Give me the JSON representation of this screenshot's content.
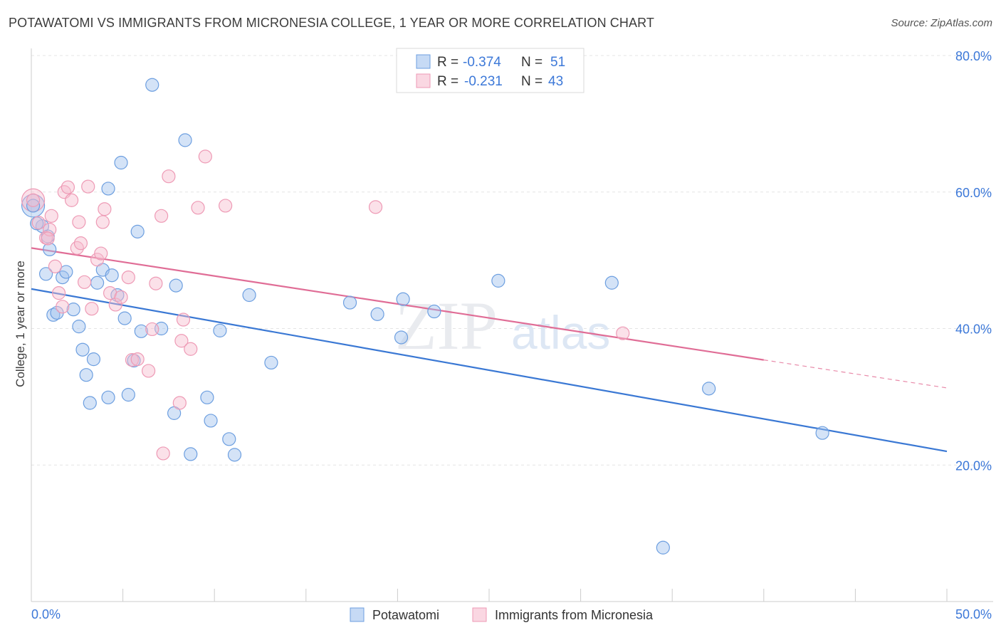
{
  "title": "POTAWATOMI VS IMMIGRANTS FROM MICRONESIA COLLEGE, 1 YEAR OR MORE CORRELATION CHART",
  "source": "Source: ZipAtlas.com",
  "watermark": {
    "zip": "ZIP",
    "atlas": "atlas"
  },
  "legend_box": {
    "rows": [
      {
        "r_label": "R =",
        "r_value": "-0.374",
        "n_label": "N =",
        "n_value": "51",
        "color": "#6d9fe0"
      },
      {
        "r_label": "R =",
        "r_value": "-0.231",
        "n_label": "N =",
        "n_value": "43",
        "color": "#ee9ab5"
      }
    ]
  },
  "chart_data": {
    "type": "scatter",
    "xlabel": "",
    "ylabel": "College, 1 year or more",
    "xlim": [
      0,
      50
    ],
    "ylim": [
      0,
      80
    ],
    "x_tick_labels": [
      "0.0%",
      "50.0%"
    ],
    "y_tick_labels": [
      "20.0%",
      "40.0%",
      "60.0%",
      "80.0%"
    ],
    "y_ticks": [
      20,
      40,
      60,
      80
    ],
    "grid": true,
    "legend_position": "bottom",
    "series": [
      {
        "name": "Potawatomi",
        "color": "#6d9fe0",
        "fill": "rgba(160,194,238,0.45)",
        "trend": {
          "x": [
            0,
            50
          ],
          "y": [
            45.8,
            22.0
          ],
          "dashed_from": null
        },
        "points": [
          [
            0.1,
            58.0
          ],
          [
            0.6,
            55.0
          ],
          [
            0.9,
            53.5
          ],
          [
            0.8,
            48.0
          ],
          [
            1.2,
            42.0
          ],
          [
            1.4,
            42.3
          ],
          [
            1.7,
            47.5
          ],
          [
            1.9,
            48.3
          ],
          [
            2.3,
            42.8
          ],
          [
            2.6,
            40.3
          ],
          [
            2.8,
            36.9
          ],
          [
            3.0,
            33.2
          ],
          [
            3.2,
            29.1
          ],
          [
            3.4,
            35.5
          ],
          [
            3.6,
            46.7
          ],
          [
            3.9,
            48.6
          ],
          [
            4.2,
            29.9
          ],
          [
            4.2,
            60.5
          ],
          [
            4.4,
            47.8
          ],
          [
            4.7,
            44.9
          ],
          [
            4.9,
            64.3
          ],
          [
            5.1,
            41.5
          ],
          [
            5.3,
            30.3
          ],
          [
            5.6,
            35.3
          ],
          [
            5.8,
            54.2
          ],
          [
            6.0,
            39.6
          ],
          [
            6.6,
            75.7
          ],
          [
            7.1,
            40.0
          ],
          [
            7.8,
            27.6
          ],
          [
            7.9,
            46.3
          ],
          [
            8.4,
            67.6
          ],
          [
            8.7,
            21.6
          ],
          [
            9.6,
            29.9
          ],
          [
            9.8,
            26.5
          ],
          [
            10.3,
            39.7
          ],
          [
            10.8,
            23.8
          ],
          [
            11.1,
            21.5
          ],
          [
            11.9,
            44.9
          ],
          [
            13.1,
            35.0
          ],
          [
            17.4,
            43.8
          ],
          [
            18.9,
            42.1
          ],
          [
            20.2,
            38.7
          ],
          [
            20.3,
            44.3
          ],
          [
            22.0,
            42.5
          ],
          [
            25.5,
            47.0
          ],
          [
            31.7,
            46.7
          ],
          [
            34.5,
            7.9
          ],
          [
            37.0,
            31.2
          ],
          [
            43.2,
            24.7
          ],
          [
            0.3,
            55.4
          ],
          [
            1.0,
            51.6
          ]
        ]
      },
      {
        "name": "Immigrants from Micronesia",
        "color": "#ee9ab5",
        "fill": "rgba(246,188,207,0.45)",
        "trend": {
          "x": [
            0,
            50
          ],
          "y": [
            51.8,
            31.3
          ],
          "dashed_from": 40
        },
        "points": [
          [
            0.1,
            58.8
          ],
          [
            0.4,
            55.5
          ],
          [
            0.8,
            53.3
          ],
          [
            1.0,
            54.5
          ],
          [
            1.1,
            56.5
          ],
          [
            1.3,
            49.1
          ],
          [
            1.5,
            45.2
          ],
          [
            1.7,
            43.2
          ],
          [
            1.8,
            60.0
          ],
          [
            2.0,
            60.7
          ],
          [
            2.2,
            58.8
          ],
          [
            2.5,
            51.8
          ],
          [
            2.6,
            55.6
          ],
          [
            2.7,
            52.5
          ],
          [
            2.9,
            46.8
          ],
          [
            3.1,
            60.8
          ],
          [
            3.3,
            42.9
          ],
          [
            3.6,
            50.1
          ],
          [
            3.8,
            51.0
          ],
          [
            3.9,
            55.6
          ],
          [
            4.0,
            57.5
          ],
          [
            4.3,
            45.2
          ],
          [
            4.6,
            43.5
          ],
          [
            4.9,
            44.6
          ],
          [
            5.3,
            47.5
          ],
          [
            5.5,
            35.4
          ],
          [
            5.8,
            35.5
          ],
          [
            6.4,
            33.8
          ],
          [
            6.6,
            39.9
          ],
          [
            6.8,
            46.6
          ],
          [
            7.1,
            56.5
          ],
          [
            7.2,
            21.7
          ],
          [
            7.5,
            62.3
          ],
          [
            8.1,
            29.1
          ],
          [
            8.2,
            38.2
          ],
          [
            8.3,
            41.3
          ],
          [
            8.7,
            37.0
          ],
          [
            9.1,
            57.7
          ],
          [
            9.5,
            65.2
          ],
          [
            10.6,
            58.0
          ],
          [
            18.8,
            57.8
          ],
          [
            32.3,
            39.3
          ],
          [
            0.9,
            53.2
          ]
        ]
      }
    ],
    "bubbles": [
      {
        "series": 0,
        "x": 0.1,
        "y": 58.0,
        "size": "large"
      },
      {
        "series": 1,
        "x": 0.1,
        "y": 58.8,
        "size": "large"
      }
    ]
  }
}
